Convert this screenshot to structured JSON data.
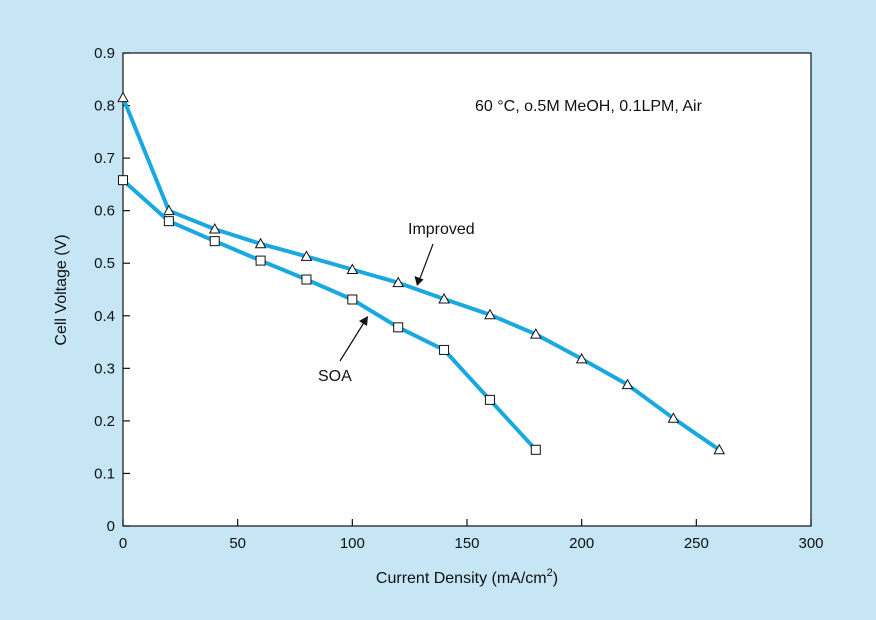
{
  "chart_data": {
    "type": "line",
    "title": "",
    "annotation": "60 °C, o.5M MeOH, 0.1LPM, Air",
    "xlabel": "Current Density (mA/cm",
    "xlabel_superscript": "2",
    "xlabel_suffix": ")",
    "ylabel": "Cell Voltage (V)",
    "xlim": [
      0,
      300
    ],
    "ylim": [
      0,
      0.9
    ],
    "x_ticks": [
      0,
      50,
      100,
      150,
      200,
      250,
      300
    ],
    "x_tick_labels": [
      "0",
      "50",
      "100",
      "150",
      "200",
      "250",
      "300"
    ],
    "y_ticks": [
      0,
      0.1,
      0.2,
      0.3,
      0.4,
      0.5,
      0.6,
      0.7,
      0.8,
      0.9
    ],
    "y_tick_labels": [
      "0",
      "0.1",
      "0.2",
      "0.3",
      "0.4",
      "0.5",
      "0.6",
      "0.7",
      "0.8",
      "0.9"
    ],
    "grid": false,
    "line_color": "#1aa8e0",
    "series": [
      {
        "name": "Improved",
        "marker": "triangle",
        "x": [
          0,
          20,
          40,
          60,
          80,
          100,
          120,
          140,
          160,
          180,
          200,
          220,
          240,
          260
        ],
        "y": [
          0.815,
          0.6,
          0.565,
          0.537,
          0.513,
          0.488,
          0.463,
          0.432,
          0.402,
          0.365,
          0.318,
          0.269,
          0.205,
          0.145
        ]
      },
      {
        "name": "SOA",
        "marker": "square",
        "x": [
          0,
          20,
          40,
          60,
          80,
          100,
          120,
          140,
          160,
          180
        ],
        "y": [
          0.658,
          0.58,
          0.542,
          0.505,
          0.469,
          0.431,
          0.378,
          0.335,
          0.24,
          0.145
        ]
      }
    ],
    "callouts": [
      {
        "label": "Improved",
        "series": "Improved"
      },
      {
        "label": "SOA",
        "series": "SOA"
      }
    ]
  }
}
